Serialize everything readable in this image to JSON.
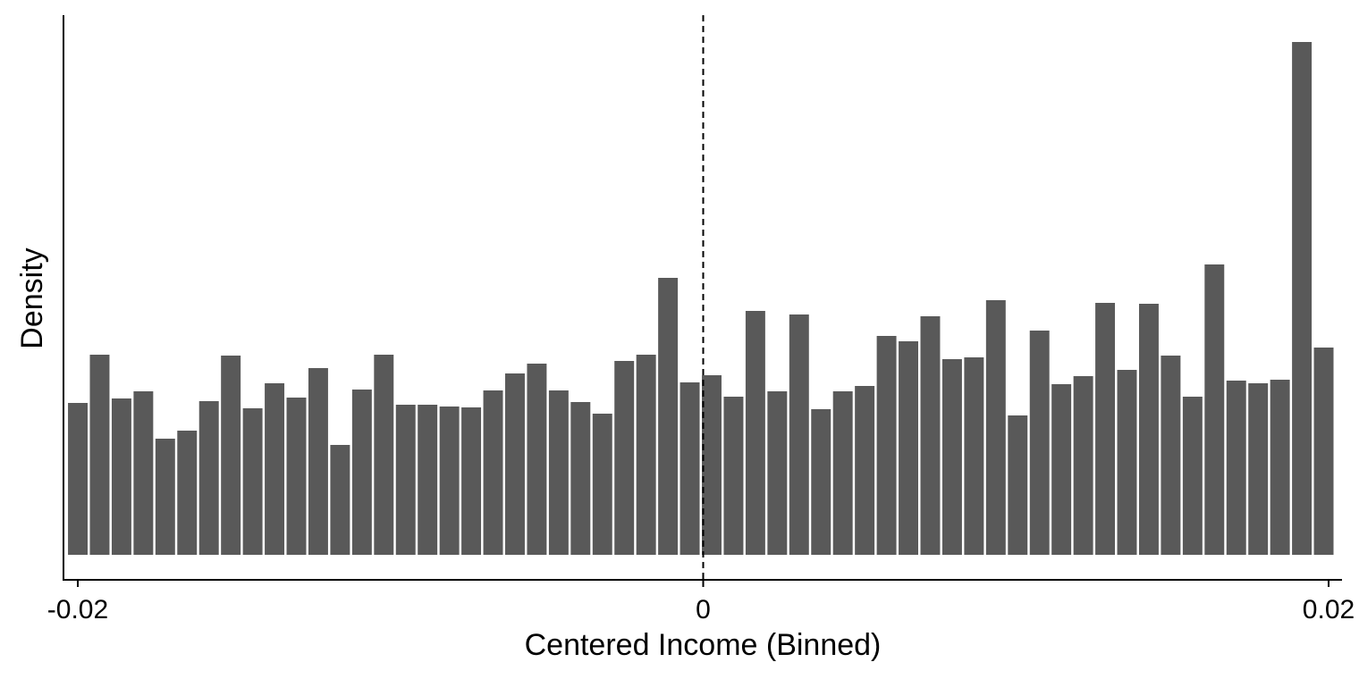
{
  "chart_data": {
    "type": "bar",
    "xlabel": "Centered Income (Binned)",
    "ylabel": "Density",
    "xlim": [
      -0.0204,
      0.0204
    ],
    "xticks": [
      {
        "value": -0.02,
        "label": "-0.02"
      },
      {
        "value": 0,
        "label": "0"
      },
      {
        "value": 0.02,
        "label": "0.02"
      }
    ],
    "y_tick_labels_shown": false,
    "grid": false,
    "legend": "none",
    "bar_color": "#595959",
    "reference_line": {
      "x": 0,
      "style": "dashed",
      "color": "#000000"
    },
    "bin_width": 0.000699,
    "bar_start_x": -0.02,
    "values": [
      170,
      224,
      175,
      183,
      130,
      139,
      172,
      223,
      164,
      192,
      176,
      209,
      123,
      185,
      224,
      168,
      168,
      166,
      165,
      184,
      203,
      214,
      184,
      171,
      158,
      217,
      224,
      310,
      193,
      201,
      177,
      273,
      183,
      269,
      163,
      183,
      189,
      245,
      239,
      267,
      219,
      221,
      285,
      156,
      251,
      191,
      200,
      282,
      207,
      281,
      223,
      177,
      325,
      195,
      192,
      196,
      574,
      232
    ]
  }
}
